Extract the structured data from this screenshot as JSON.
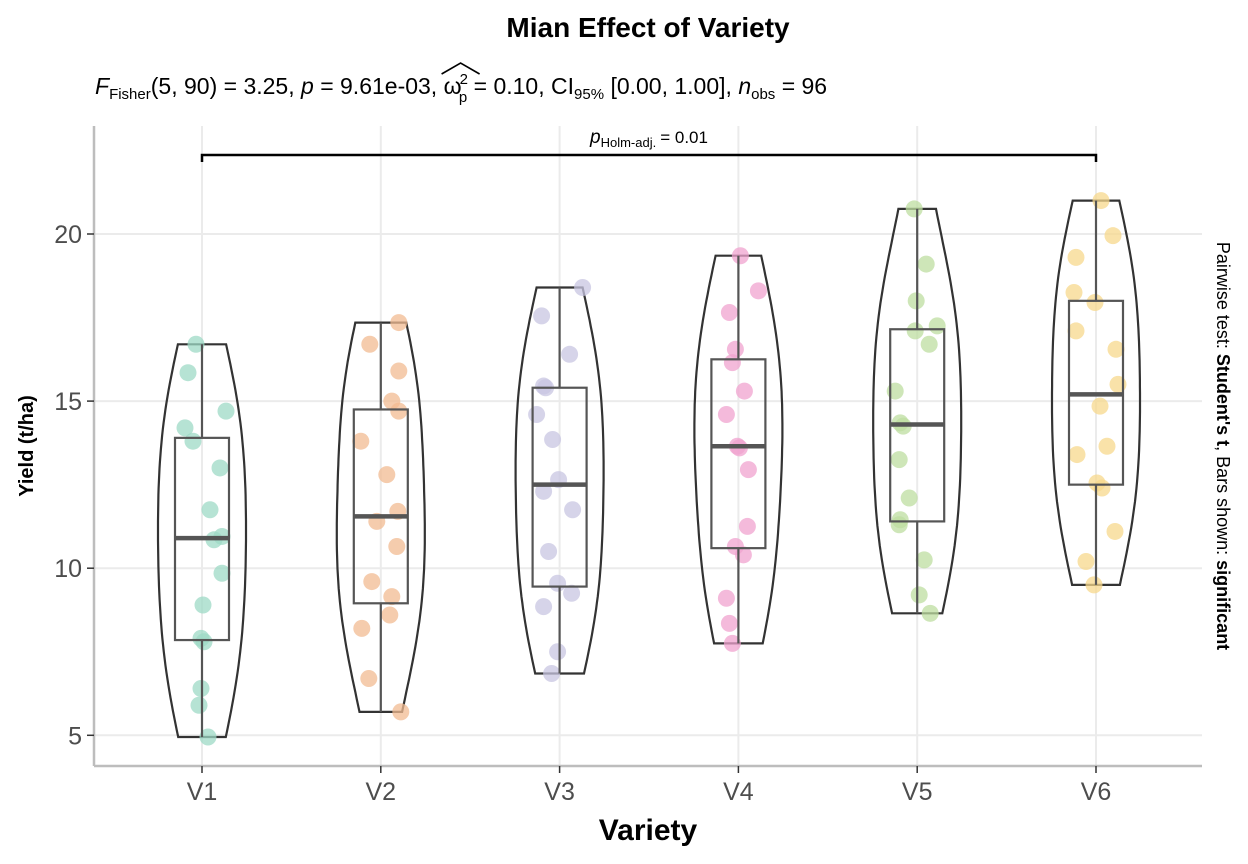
{
  "chart_data": {
    "type": "violin-box-scatter",
    "title": "Mian Effect of Variety",
    "subtitle": {
      "stat_symbol": "F",
      "stat_sub": "Fisher",
      "df": "(5, 90)",
      "stat_value": "= 3.25,",
      "p_symbol": "p",
      "p_value": "= 9.61e-03,",
      "effect_symbol": "ω",
      "effect_sup": "2",
      "effect_sub": "p",
      "effect_value": "= 0.10,",
      "ci_label": "CI",
      "ci_sub": "95%",
      "ci_value": "[0.00, 1.00],",
      "n_symbol": "n",
      "n_sub": "obs",
      "n_value": "= 96"
    },
    "xlabel": "Variety",
    "ylabel": "Yield (t/ha)",
    "ylim": [
      4.2,
      22.9
    ],
    "yticks": [
      5,
      10,
      15,
      20
    ],
    "ytick_labels": [
      "5",
      "10",
      "15",
      "20"
    ],
    "grid": true,
    "categories": [
      "V1",
      "V2",
      "V3",
      "V4",
      "V5",
      "V6"
    ],
    "colors": [
      "#9ed9c6",
      "#f2bb92",
      "#c8c6e2",
      "#f0a3cf",
      "#bedda0",
      "#f7d88c"
    ],
    "series": [
      {
        "name": "V1",
        "values": [
          16.7,
          15.85,
          14.7,
          14.2,
          13.8,
          13.0,
          11.75,
          10.95,
          10.85,
          9.85,
          8.9,
          7.9,
          7.8,
          6.4,
          5.9,
          4.95
        ],
        "box": {
          "q1": 7.85,
          "median": 10.9,
          "q3": 13.9,
          "min": 4.95,
          "max": 16.7
        }
      },
      {
        "name": "V2",
        "values": [
          17.35,
          16.7,
          15.9,
          15.0,
          14.7,
          13.8,
          12.8,
          11.7,
          11.4,
          10.65,
          9.6,
          9.15,
          8.6,
          8.2,
          6.7,
          5.7
        ],
        "box": {
          "q1": 8.95,
          "median": 11.55,
          "q3": 14.75,
          "min": 5.7,
          "max": 17.35
        }
      },
      {
        "name": "V3",
        "values": [
          18.4,
          17.55,
          16.4,
          15.45,
          15.4,
          14.6,
          13.85,
          12.65,
          12.3,
          11.75,
          10.5,
          9.55,
          9.25,
          8.85,
          7.5,
          6.85
        ],
        "box": {
          "q1": 9.45,
          "median": 12.5,
          "q3": 15.4,
          "min": 6.85,
          "max": 18.4
        }
      },
      {
        "name": "V4",
        "values": [
          19.35,
          18.3,
          17.65,
          16.55,
          16.15,
          15.3,
          14.6,
          13.65,
          13.6,
          12.95,
          11.25,
          10.65,
          10.4,
          9.1,
          8.35,
          7.75
        ],
        "box": {
          "q1": 10.6,
          "median": 13.65,
          "q3": 16.25,
          "min": 7.75,
          "max": 19.35
        }
      },
      {
        "name": "V5",
        "values": [
          20.75,
          19.1,
          18.0,
          17.25,
          17.1,
          16.7,
          15.3,
          14.35,
          14.25,
          13.25,
          12.1,
          11.45,
          11.3,
          10.25,
          9.2,
          8.65
        ],
        "box": {
          "q1": 11.4,
          "median": 14.3,
          "q3": 17.15,
          "min": 8.65,
          "max": 20.75
        }
      },
      {
        "name": "V6",
        "values": [
          21.0,
          19.95,
          19.3,
          18.25,
          17.95,
          17.1,
          16.55,
          15.5,
          14.85,
          13.65,
          13.4,
          12.55,
          12.4,
          11.1,
          10.2,
          9.5
        ],
        "box": {
          "q1": 12.5,
          "median": 15.2,
          "q3": 18.0,
          "min": 9.5,
          "max": 21.0
        }
      }
    ],
    "pairwise_annotation": {
      "from": "V1",
      "to": "V6",
      "label_symbol": "p",
      "label_sub": "Holm-adj.",
      "label_value": "= 0.01"
    },
    "caption": {
      "part1": "Pairwise test: ",
      "part2": "Student's t",
      "part3": ", Bars shown: ",
      "part4": "significant"
    }
  }
}
